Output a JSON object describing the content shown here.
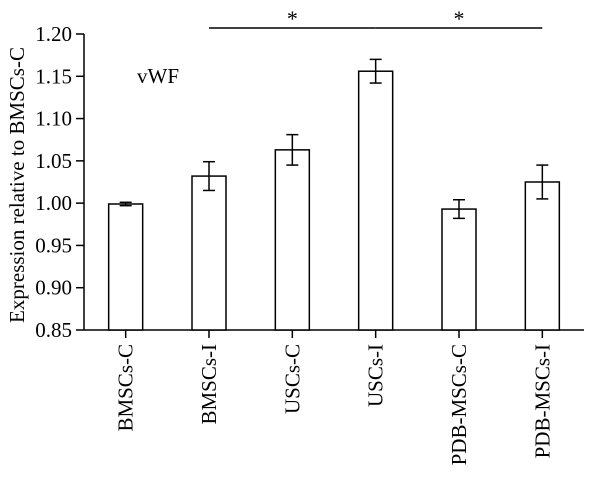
{
  "chart_data": {
    "type": "bar",
    "categories": [
      "BMSCs-C",
      "BMSCs-I",
      "USCs-C",
      "USCs-I",
      "PDB-MSCs-C",
      "PDB-MSCs-I"
    ],
    "values": [
      0.999,
      1.032,
      1.063,
      1.156,
      0.993,
      1.025
    ],
    "errors": [
      0.002,
      0.017,
      0.018,
      0.014,
      0.011,
      0.02
    ],
    "title": "",
    "annotation": "vWF",
    "xlabel": "",
    "ylabel": "Expression relative to BMSCs-C",
    "ylim": [
      0.85,
      1.2
    ],
    "yticks": [
      0.85,
      0.9,
      0.95,
      1.0,
      1.05,
      1.1,
      1.15,
      1.2
    ],
    "ytick_labels": [
      "0.85",
      "0.90",
      "0.95",
      "1.00",
      "1.05",
      "1.10",
      "1.15",
      "1.20"
    ],
    "significance": [
      {
        "from": "BMSCs-I",
        "to": "USCs-I",
        "label": "*"
      },
      {
        "from": "USCs-I",
        "to": "PDB-MSCs-I",
        "label": "*"
      }
    ],
    "bar_fill": "#ffffff",
    "bar_stroke": "#000000",
    "grid": false,
    "legend": "none"
  }
}
